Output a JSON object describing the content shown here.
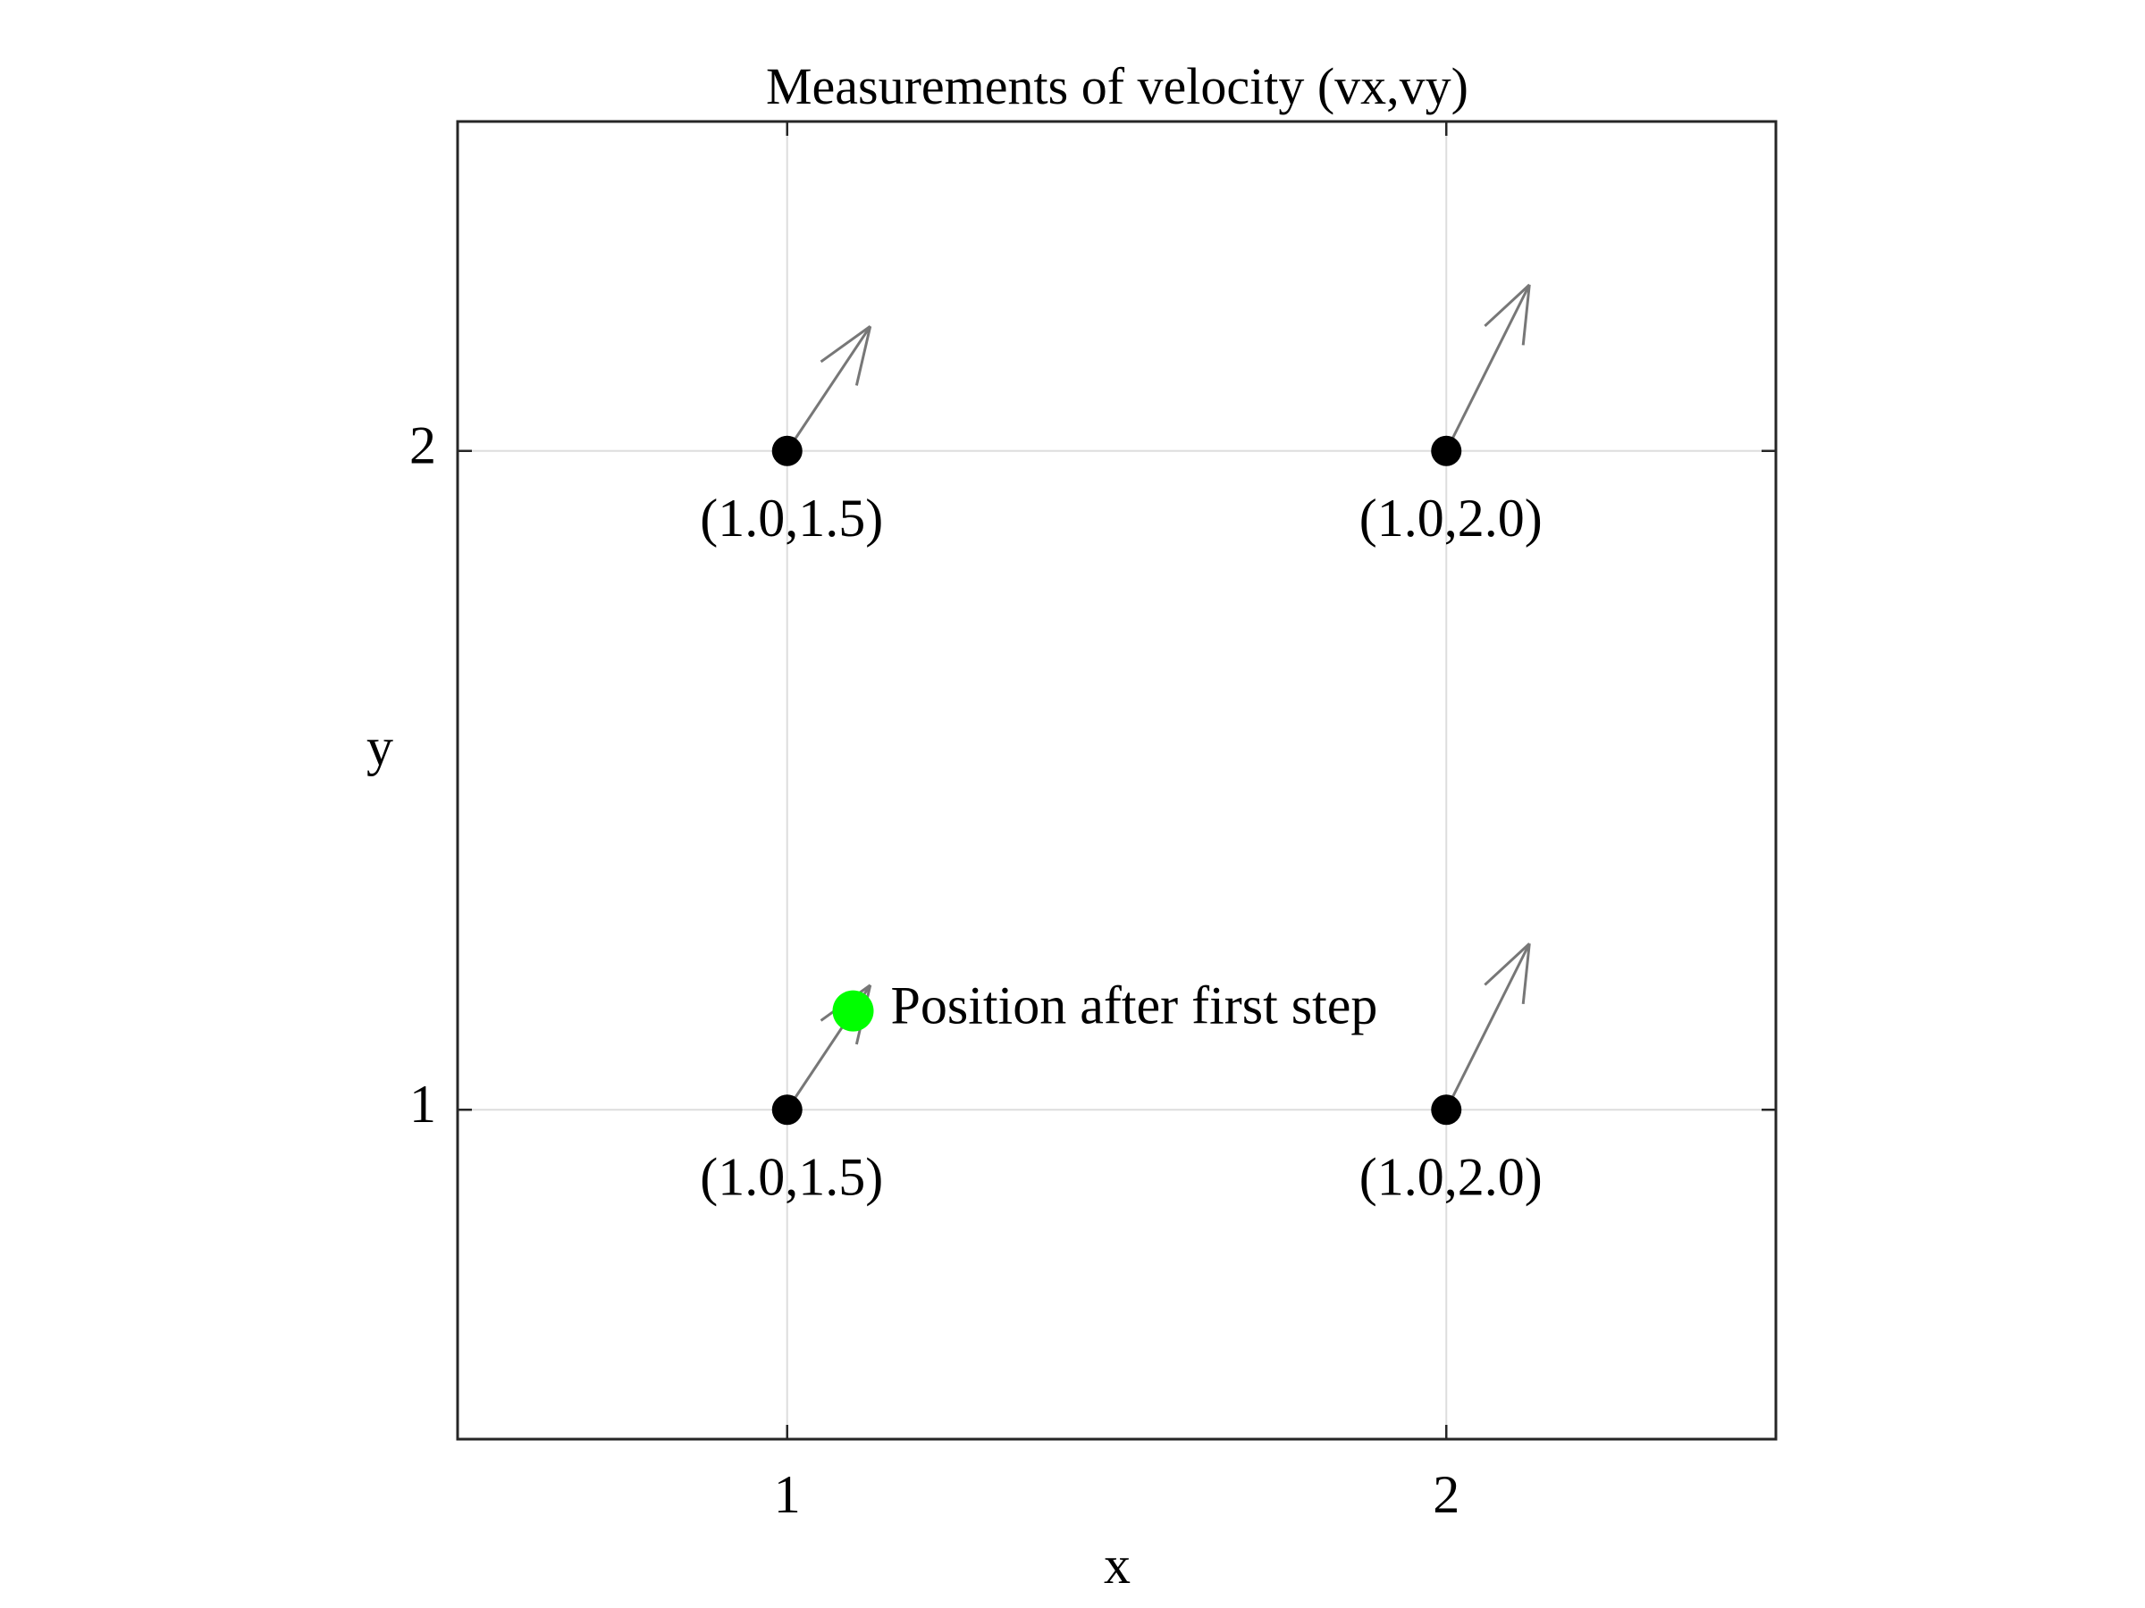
{
  "chart_data": {
    "type": "scatter",
    "title": "Measurements of velocity (vx,vy)",
    "xlabel": "x",
    "ylabel": "y",
    "xlim": [
      0.5,
      2.5
    ],
    "ylim": [
      0.5,
      2.5
    ],
    "xticks": [
      1,
      2
    ],
    "yticks": [
      1,
      2
    ],
    "grid": true,
    "points": [
      {
        "x": 1,
        "y": 1,
        "label": "(1.0,1.5)",
        "vx": 1.0,
        "vy": 1.5
      },
      {
        "x": 2,
        "y": 1,
        "label": "(1.0,2.0)",
        "vx": 1.0,
        "vy": 2.0
      },
      {
        "x": 1,
        "y": 2,
        "label": "(1.0,1.5)",
        "vx": 1.0,
        "vy": 1.5
      },
      {
        "x": 2,
        "y": 2,
        "label": "(1.0,2.0)",
        "vx": 1.0,
        "vy": 2.0
      }
    ],
    "highlight": {
      "x": 1.1,
      "y": 1.15,
      "label": "Position after first step",
      "color": "#00ff00"
    },
    "colors": {
      "points": "#000000",
      "arrows": "#777777",
      "grid": "#dddddd",
      "axes": "#262626"
    }
  }
}
